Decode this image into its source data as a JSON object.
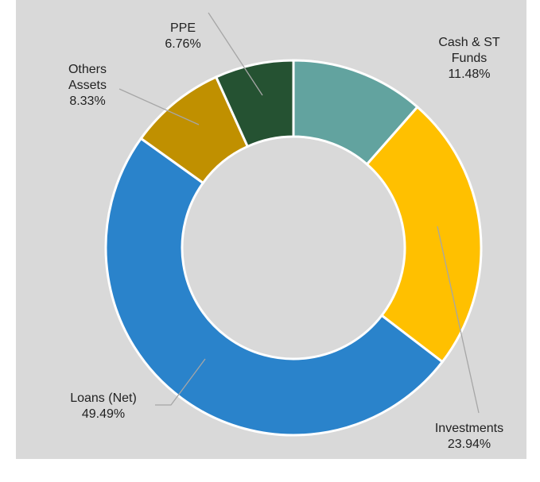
{
  "chart_data": {
    "type": "donut",
    "categories": [
      "Cash & ST Funds",
      "Investments",
      "Loans (Net)",
      "Others Assets",
      "PPE"
    ],
    "values": [
      11.48,
      23.94,
      49.49,
      8.33,
      6.76
    ],
    "value_labels": [
      "11.48%",
      "23.94%",
      "49.49%",
      "8.33%",
      "6.76%"
    ],
    "colors": [
      "#62a39f",
      "#ffc000",
      "#2a83cb",
      "#c09000",
      "#255232"
    ]
  }
}
